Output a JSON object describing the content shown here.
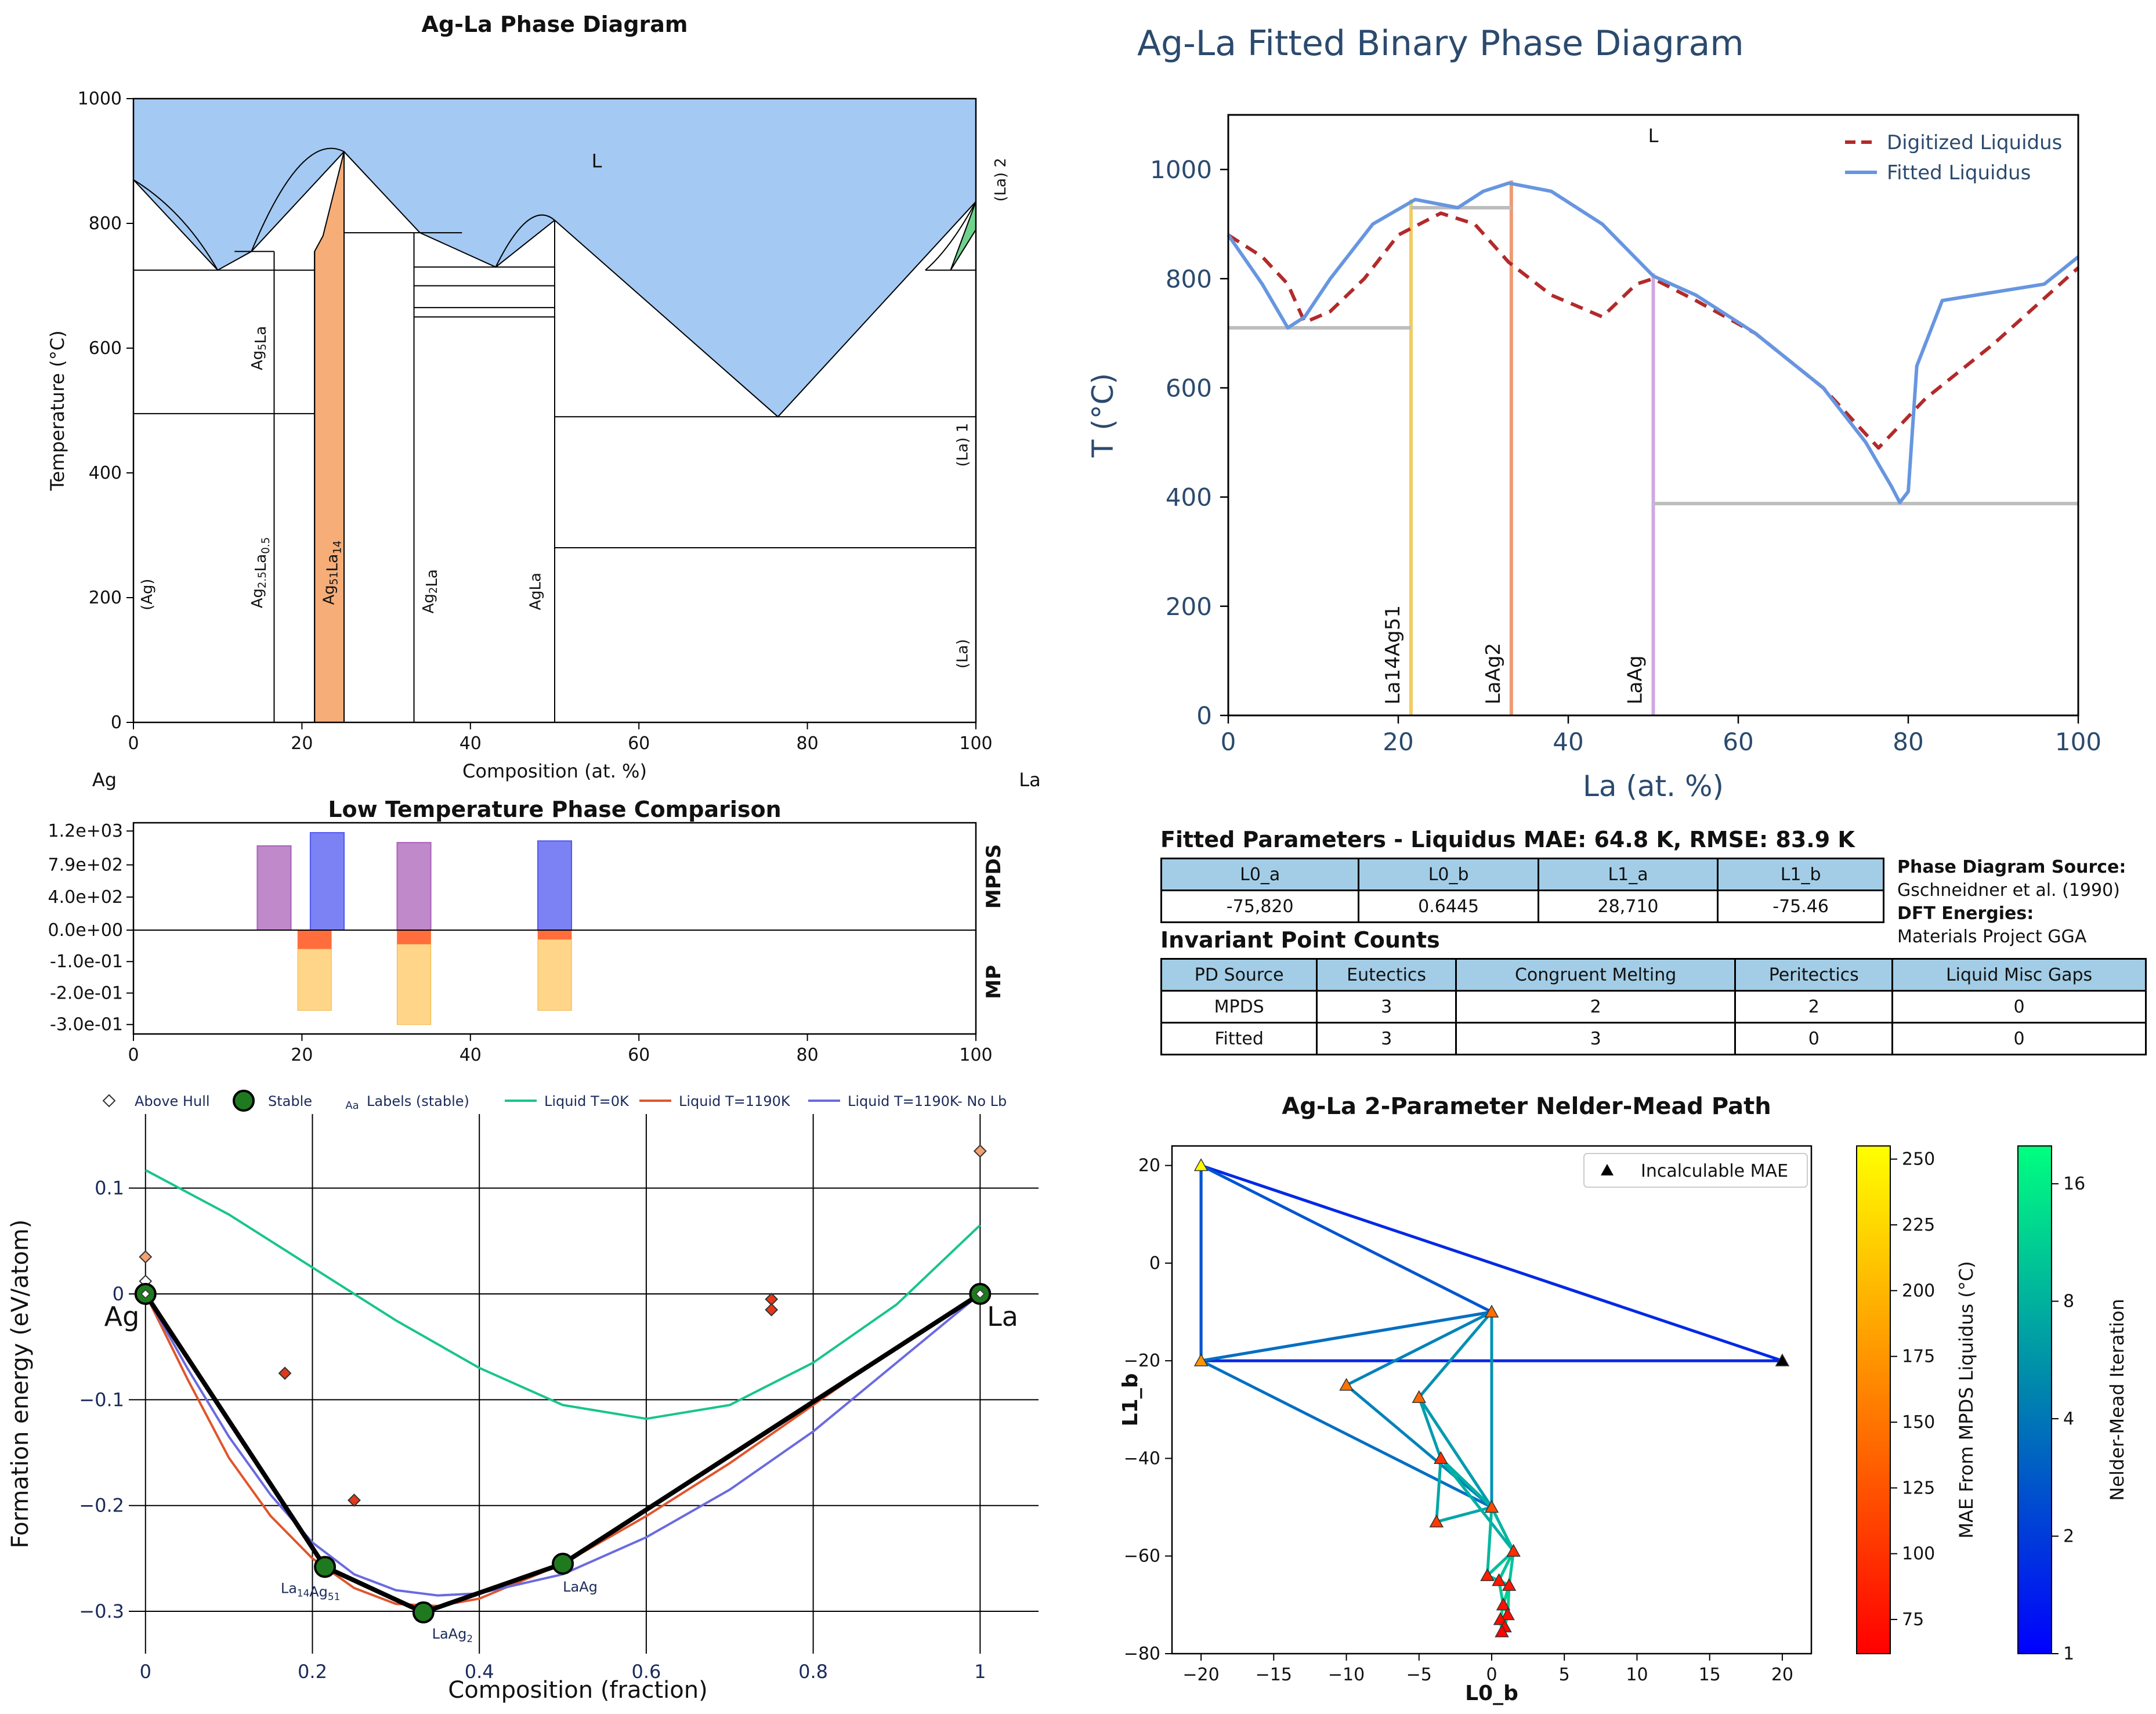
{
  "chart_data": [
    {
      "type": "phase_diagram",
      "title": "Ag-La Phase Diagram",
      "xlabel": "Composition (at. %)",
      "ylabel": "Temperature (°C)",
      "xlim": [
        0,
        100
      ],
      "ylim": [
        0,
        1000
      ],
      "xticks": [
        "0",
        "20",
        "40",
        "60",
        "80",
        "100"
      ],
      "yticks": [
        "0",
        "200",
        "400",
        "600",
        "800",
        "1000"
      ],
      "end_left": "Ag",
      "end_right": "La",
      "region_labels": [
        "L",
        "(La) 2",
        "(La) 1",
        "(La)",
        "(Ag)"
      ],
      "phases": [
        {
          "name": "Ag",
          "sub": "5",
          "name2": "La",
          "sub2": "",
          "x": 15
        },
        {
          "name": "Ag",
          "sub": "2.5",
          "name2": "La",
          "sub2": "0.5",
          "x": 15
        },
        {
          "name": "Ag",
          "sub": "51",
          "name2": "La",
          "sub2": "14",
          "x": 23
        },
        {
          "name": "Ag",
          "sub": "2",
          "name2": "La",
          "sub2": "",
          "x": 35
        },
        {
          "name": "AgLa",
          "sub": "",
          "name2": "",
          "sub2": "",
          "x": 48
        }
      ],
      "liquidus": [
        [
          0,
          870
        ],
        [
          10,
          725
        ],
        [
          14,
          755
        ],
        [
          25,
          915
        ],
        [
          34,
          785
        ],
        [
          43,
          730
        ],
        [
          50,
          805
        ],
        [
          76.5,
          490
        ],
        [
          100,
          835
        ]
      ],
      "compound_lines": [
        16.7,
        21.5,
        25,
        33.3,
        50
      ],
      "invariant_temperatures": [
        725,
        755,
        785,
        730,
        700,
        665,
        650,
        495,
        490,
        280
      ]
    },
    {
      "type": "line",
      "title": "Ag-La Fitted Binary Phase Diagram",
      "xlabel": "La (at. %)",
      "ylabel": "T (°C)",
      "xlim": [
        0,
        100
      ],
      "ylim": [
        0,
        1100
      ],
      "xticks": [
        "0",
        "20",
        "40",
        "60",
        "80",
        "100"
      ],
      "yticks": [
        "0",
        "200",
        "400",
        "600",
        "800",
        "1000"
      ],
      "region_label": "L",
      "legend": "top-right",
      "series": [
        {
          "name": "Digitized Liquidus",
          "style": "dashed",
          "color": "#b22a2a",
          "x": [
            0,
            4,
            7,
            9,
            12,
            16,
            20,
            25,
            29,
            33,
            38,
            44,
            48,
            50,
            55,
            62,
            70,
            76.5,
            82,
            90,
            100
          ],
          "y": [
            880,
            840,
            790,
            720,
            740,
            800,
            880,
            920,
            900,
            830,
            770,
            730,
            790,
            800,
            760,
            700,
            600,
            490,
            580,
            680,
            820
          ]
        },
        {
          "name": "Fitted Liquidus",
          "style": "solid",
          "color": "#6796e0",
          "x": [
            0,
            4,
            7,
            9,
            12,
            17,
            22,
            27,
            30,
            33,
            38,
            44,
            50,
            55,
            62,
            70,
            75,
            78,
            79,
            80,
            81,
            84,
            90,
            96,
            100
          ],
          "y": [
            880,
            790,
            710,
            730,
            800,
            900,
            945,
            930,
            960,
            975,
            960,
            900,
            805,
            770,
            700,
            600,
            500,
            420,
            390,
            410,
            640,
            760,
            775,
            790,
            840
          ]
        }
      ],
      "compounds": [
        {
          "label": "La14Ag51",
          "x": 21.5,
          "color": "#f2cc60"
        },
        {
          "label": "LaAg2",
          "x": 33.3,
          "color": "#ed9b74"
        },
        {
          "label": "LaAg",
          "x": 50,
          "color": "#cfa9e3"
        }
      ],
      "invariant_lines": [
        {
          "x1": 0,
          "x2": 21.5,
          "y": 710
        },
        {
          "x1": 21.5,
          "x2": 33.3,
          "y": 930
        },
        {
          "x1": 50,
          "x2": 100,
          "y": 388
        }
      ]
    },
    {
      "type": "bar",
      "title": "Low Temperature Phase Comparison",
      "xlim": [
        0,
        100
      ],
      "xticks": [
        "0",
        "20",
        "40",
        "60",
        "80",
        "100"
      ],
      "yticks": [
        "1.2e+03",
        "7.9e+02",
        "4.0e+02",
        "0.0e+00",
        "-1.0e-01",
        "-2.0e-01",
        "-3.0e-01"
      ],
      "upper_label": "MPDS",
      "lower_label": "MP",
      "mpds_bars": [
        {
          "x": 16.7,
          "value": 1020,
          "color": "#a961b8"
        },
        {
          "x": 23.0,
          "value": 1180,
          "color": "#5058f0"
        },
        {
          "x": 33.3,
          "value": 1060,
          "color": "#a961b8"
        },
        {
          "x": 50.0,
          "value": 1080,
          "color": "#5058f0"
        }
      ],
      "mp_bars": [
        {
          "x": 21.5,
          "hull": -0.06,
          "total": -0.255
        },
        {
          "x": 33.3,
          "hull": -0.045,
          "total": -0.3
        },
        {
          "x": 50.0,
          "hull": -0.03,
          "total": -0.255
        }
      ]
    },
    {
      "type": "scatter",
      "xlabel": "Composition (fraction)",
      "ylabel": "Formation energy (eV/atom)",
      "xlim": [
        -0.02,
        1.07
      ],
      "ylim": [
        -0.34,
        0.17
      ],
      "xticks": [
        "0",
        "0.2",
        "0.4",
        "0.6",
        "0.8",
        "1"
      ],
      "yticks": [
        "0.1",
        "0",
        "−0.1",
        "−0.2",
        "−0.3"
      ],
      "legend_items": [
        "Above Hull",
        "Stable",
        "Labels (stable)",
        "Liquid T=0K",
        "Liquid T=1190K",
        "Liquid T=1190K- No Lb"
      ],
      "legend_aa": "Aa",
      "end_left": "Ag",
      "end_right": "La",
      "stable": [
        {
          "x": 0,
          "y": 0,
          "label": ""
        },
        {
          "x": 0.215,
          "y": -0.258,
          "label": "La",
          "sub": "14",
          "label2": "Ag",
          "sub2": "51"
        },
        {
          "x": 0.333,
          "y": -0.301,
          "label": "LaAg",
          "sub": "2",
          "label2": "",
          "sub2": ""
        },
        {
          "x": 0.5,
          "y": -0.255,
          "label": "LaAg",
          "sub": "",
          "label2": "",
          "sub2": ""
        },
        {
          "x": 1,
          "y": 0,
          "label": ""
        }
      ],
      "above_hull": [
        {
          "x": 0,
          "y": 0.035
        },
        {
          "x": 0,
          "y": 0.012
        },
        {
          "x": 0.167,
          "y": -0.075
        },
        {
          "x": 0.25,
          "y": -0.195
        },
        {
          "x": 0.75,
          "y": -0.005
        },
        {
          "x": 0.75,
          "y": -0.015
        },
        {
          "x": 1,
          "y": 0.135
        }
      ],
      "series": [
        {
          "name": "Liquid T=0K",
          "color": "#19c48c",
          "x": [
            0,
            0.1,
            0.2,
            0.3,
            0.4,
            0.5,
            0.6,
            0.7,
            0.8,
            0.9,
            1
          ],
          "y": [
            0.117,
            0.075,
            0.025,
            -0.025,
            -0.07,
            -0.105,
            -0.118,
            -0.105,
            -0.065,
            -0.01,
            0.065
          ]
        },
        {
          "name": "Liquid T=1190K",
          "color": "#e0552c",
          "x": [
            0,
            0.05,
            0.1,
            0.15,
            0.2,
            0.25,
            0.3,
            0.35,
            0.4,
            0.5,
            0.6,
            0.7,
            0.8,
            0.9,
            1
          ],
          "y": [
            0,
            -0.08,
            -0.155,
            -0.21,
            -0.25,
            -0.278,
            -0.293,
            -0.295,
            -0.288,
            -0.255,
            -0.21,
            -0.16,
            -0.105,
            -0.05,
            0
          ]
        },
        {
          "name": "Liquid T=1190K- No Lb",
          "color": "#6a6ae0",
          "x": [
            0,
            0.05,
            0.1,
            0.15,
            0.2,
            0.25,
            0.3,
            0.35,
            0.4,
            0.5,
            0.6,
            0.7,
            0.8,
            0.9,
            1
          ],
          "y": [
            0,
            -0.07,
            -0.135,
            -0.19,
            -0.235,
            -0.265,
            -0.28,
            -0.285,
            -0.283,
            -0.265,
            -0.23,
            -0.185,
            -0.13,
            -0.065,
            0
          ]
        }
      ]
    },
    {
      "type": "scatter",
      "title": "Ag-La 2-Parameter Nelder-Mead Path",
      "xlabel": "L0_b",
      "ylabel": "L1_b",
      "xlim": [
        -22,
        22
      ],
      "ylim": [
        -80,
        24
      ],
      "xticks": [
        "−20",
        "−15",
        "−10",
        "−5",
        "0",
        "5",
        "10",
        "15",
        "20"
      ],
      "yticks": [
        "20",
        "0",
        "−20",
        "−40",
        "−60",
        "−80"
      ],
      "legend": "Incalculable MAE",
      "cbar_mae_label": "MAE From MPDS Liquidus (°C)",
      "cbar_mae_ticks": [
        "250",
        "225",
        "200",
        "175",
        "150",
        "125",
        "100",
        "75"
      ],
      "cbar_mae_range": [
        62,
        255
      ],
      "cbar_iter_label": "Nelder-Mead Iteration",
      "cbar_iter_ticks": [
        "16",
        "8",
        "4",
        "2",
        "1"
      ],
      "points": [
        {
          "x": -20,
          "y": 20,
          "mae": 255
        },
        {
          "x": -20,
          "y": -20,
          "mae": 175
        },
        {
          "x": 20,
          "y": -20,
          "mae": null
        },
        {
          "x": 0,
          "y": -10,
          "mae": 145
        },
        {
          "x": -10,
          "y": -25,
          "mae": 150
        },
        {
          "x": -5,
          "y": -27.5,
          "mae": 140
        },
        {
          "x": 0,
          "y": -50,
          "mae": 120
        },
        {
          "x": -3.5,
          "y": -40,
          "mae": 100
        },
        {
          "x": -3.8,
          "y": -53,
          "mae": 105
        },
        {
          "x": 1.5,
          "y": -59,
          "mae": 95
        },
        {
          "x": -0.3,
          "y": -64,
          "mae": 85
        },
        {
          "x": 0.5,
          "y": -65,
          "mae": 80
        },
        {
          "x": 1.2,
          "y": -66,
          "mae": 78
        },
        {
          "x": 0.8,
          "y": -70,
          "mae": 75
        },
        {
          "x": 1.1,
          "y": -72,
          "mae": 72
        },
        {
          "x": 0.6,
          "y": -73,
          "mae": 70
        },
        {
          "x": 0.9,
          "y": -74.5,
          "mae": 68
        },
        {
          "x": 0.7,
          "y": -75.5,
          "mae": 65
        }
      ],
      "path": [
        [
          [
            -20,
            20
          ],
          [
            20,
            -20
          ],
          [
            -20,
            -20
          ],
          1
        ],
        [
          [
            -20,
            20
          ],
          [
            0,
            -10
          ],
          [
            -20,
            -20
          ],
          2
        ],
        [
          [
            0,
            -10
          ],
          [
            -20,
            -20
          ],
          [
            0,
            -50
          ],
          3
        ],
        [
          [
            0,
            -10
          ],
          [
            -10,
            -25
          ],
          [
            0,
            -50
          ],
          4
        ],
        [
          [
            0,
            -10
          ],
          [
            -5,
            -27.5
          ],
          [
            0,
            -50
          ],
          5
        ],
        [
          [
            -5,
            -27.5
          ],
          [
            -3.5,
            -40
          ],
          [
            0,
            -50
          ],
          6
        ],
        [
          [
            -3.5,
            -40
          ],
          [
            -3.8,
            -53
          ],
          [
            0,
            -50
          ],
          7
        ],
        [
          [
            -3.5,
            -40
          ],
          [
            0,
            -50
          ],
          [
            1.5,
            -59
          ],
          8
        ],
        [
          [
            0,
            -50
          ],
          [
            1.5,
            -59
          ],
          [
            -0.3,
            -64
          ],
          9
        ],
        [
          [
            1.5,
            -59
          ],
          [
            -0.3,
            -64
          ],
          [
            0.5,
            -65
          ],
          10
        ],
        [
          [
            1.5,
            -59
          ],
          [
            0.5,
            -65
          ],
          [
            1.2,
            -66
          ],
          11
        ],
        [
          [
            0.5,
            -65
          ],
          [
            1.2,
            -66
          ],
          [
            0.8,
            -70
          ],
          12
        ],
        [
          [
            1.2,
            -66
          ],
          [
            0.8,
            -70
          ],
          [
            1.1,
            -72
          ],
          13
        ],
        [
          [
            0.8,
            -70
          ],
          [
            1.1,
            -72
          ],
          [
            0.6,
            -73
          ],
          14
        ],
        [
          [
            1.1,
            -72
          ],
          [
            0.6,
            -73
          ],
          [
            0.9,
            -74.5
          ],
          15
        ],
        [
          [
            0.6,
            -73
          ],
          [
            0.9,
            -74.5
          ],
          [
            0.7,
            -75.5
          ],
          16
        ]
      ]
    }
  ],
  "fitted_table": {
    "title": "Fitted Parameters - Liquidus MAE: 64.8 K, RMSE: 83.9 K",
    "headers": [
      "L0_a",
      "L0_b",
      "L1_a",
      "L1_b"
    ],
    "values": [
      "-75,820",
      "0.6445",
      "28,710",
      "-75.46"
    ]
  },
  "source_info": {
    "pd_label": "Phase Diagram Source:",
    "pd_value": "Gschneidner et al. (1990)",
    "dft_label": "DFT Energies:",
    "dft_value": "Materials Project GGA"
  },
  "invariant_table": {
    "title": "Invariant Point Counts",
    "headers": [
      "PD Source",
      "Eutectics",
      "Congruent Melting",
      "Peritectics",
      "Liquid Misc Gaps"
    ],
    "rows": [
      [
        "MPDS",
        "3",
        "2",
        "2",
        "0"
      ],
      [
        "Fitted",
        "3",
        "3",
        "0",
        "0"
      ]
    ]
  }
}
